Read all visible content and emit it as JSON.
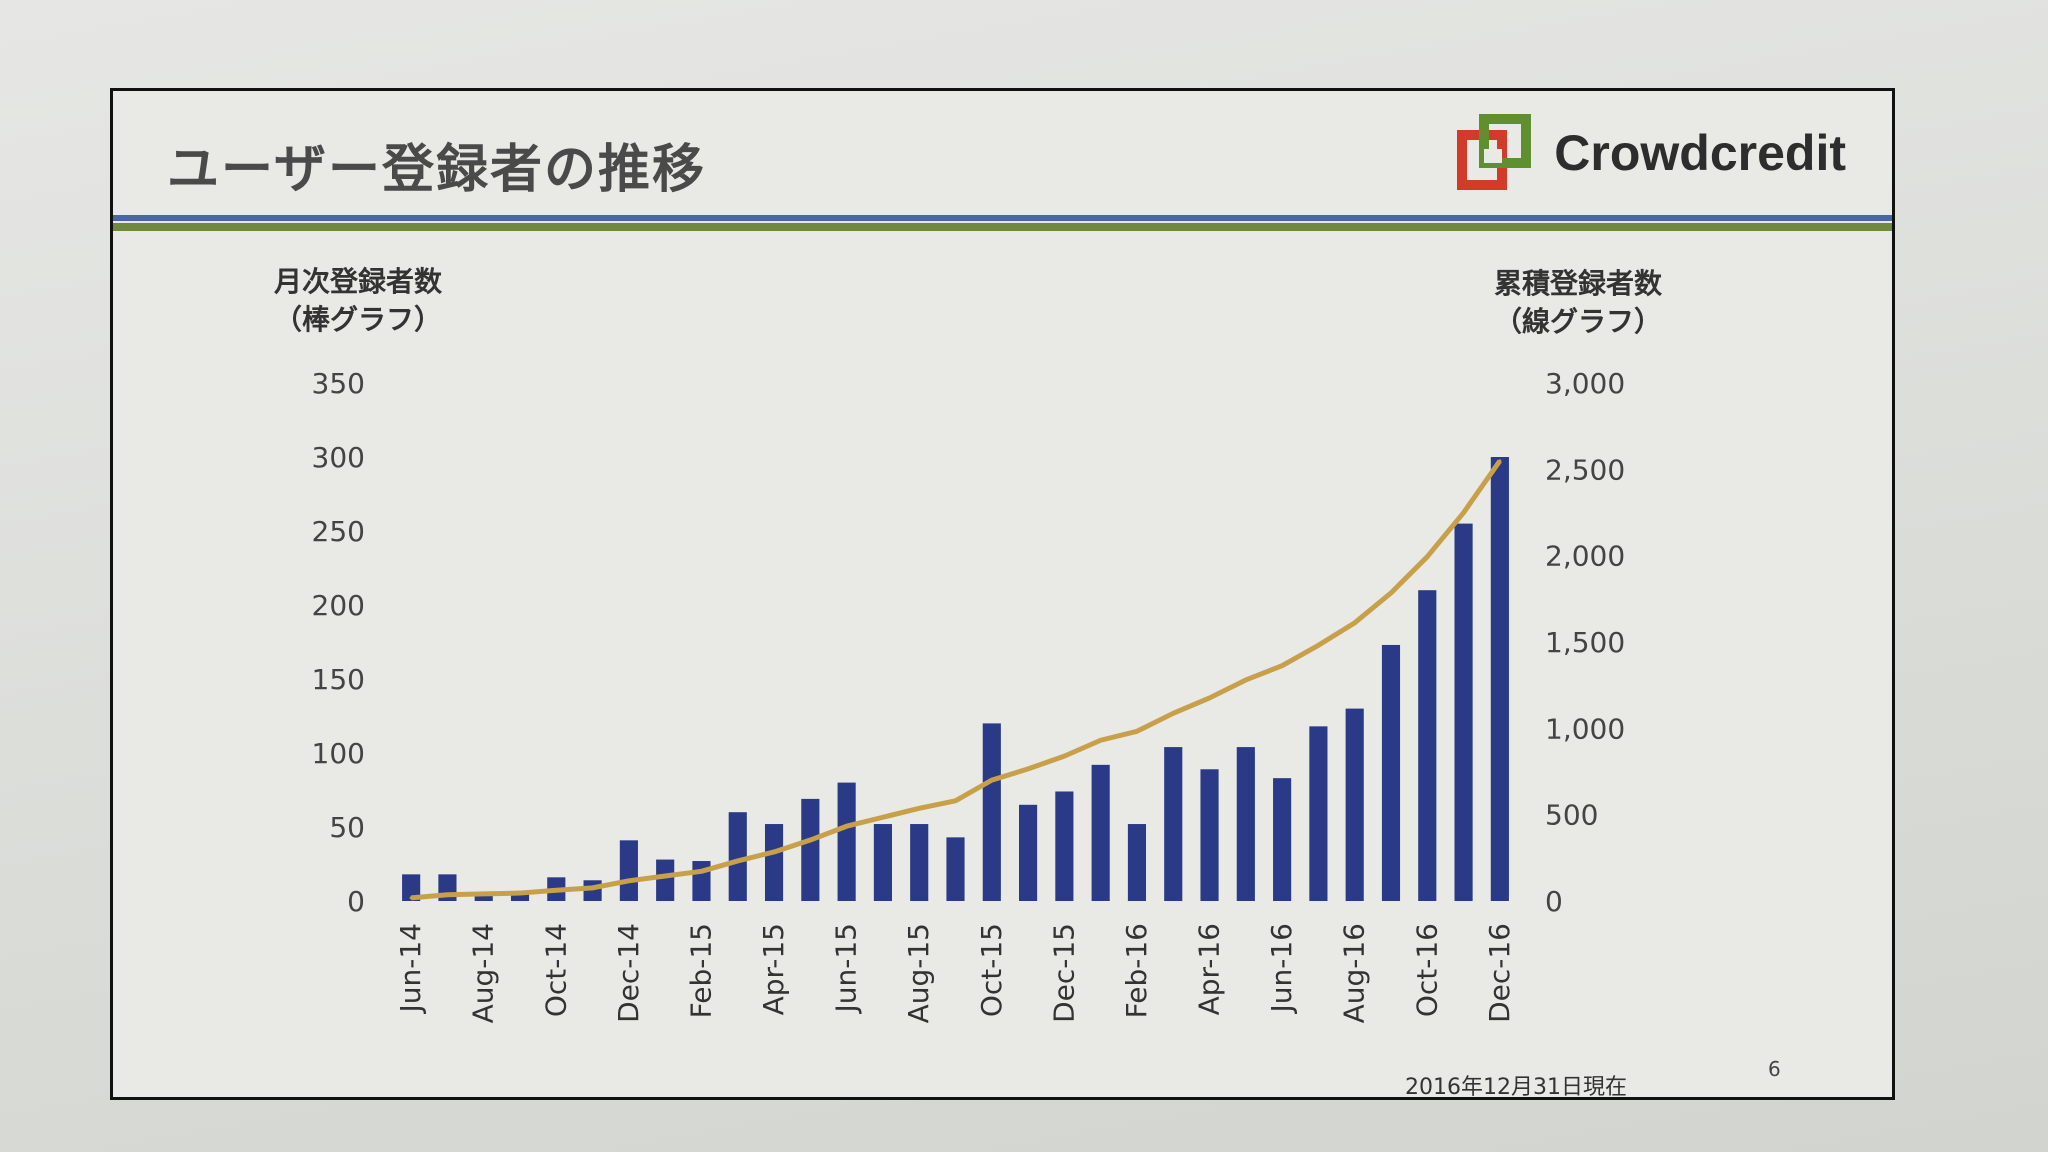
{
  "slide": {
    "title": "ユーザー登録者の推移",
    "logo_text": "Crowdcredit",
    "left_axis_label_1": "月次登録者数",
    "left_axis_label_2": "（棒グラフ）",
    "right_axis_label_1": "累積登録者数",
    "right_axis_label_2": "（線グラフ）",
    "as_of": "2016年12月31日現在",
    "page_number": "6"
  },
  "colors": {
    "bar": "#2b3a86",
    "line": "#c9a04a",
    "title_rule_blue": "#4a66a8",
    "title_rule_green": "#6f8a3e",
    "logo_green": "#5f8f2e",
    "logo_red": "#d23a2a"
  },
  "chart_data": {
    "type": "bar",
    "categories": [
      "Jun-14",
      "Jul-14",
      "Aug-14",
      "Sep-14",
      "Oct-14",
      "Nov-14",
      "Dec-14",
      "Jan-15",
      "Feb-15",
      "Mar-15",
      "Apr-15",
      "May-15",
      "Jun-15",
      "Jul-15",
      "Aug-15",
      "Sep-15",
      "Oct-15",
      "Nov-15",
      "Dec-15",
      "Jan-16",
      "Feb-16",
      "Mar-16",
      "Apr-16",
      "May-16",
      "Jun-16",
      "Jul-16",
      "Aug-16",
      "Sep-16",
      "Oct-16",
      "Nov-16",
      "Dec-16"
    ],
    "x_tick_labels": [
      "Jun-14",
      "Aug-14",
      "Oct-14",
      "Dec-14",
      "Feb-15",
      "Apr-15",
      "Jun-15",
      "Aug-15",
      "Oct-15",
      "Dec-15",
      "Feb-16",
      "Apr-16",
      "Jun-16",
      "Aug-16",
      "Oct-16",
      "Dec-16"
    ],
    "series": [
      {
        "type": "bar",
        "axis": "left",
        "values": [
          18,
          18,
          5,
          5,
          16,
          14,
          41,
          28,
          27,
          60,
          52,
          69,
          80,
          52,
          52,
          43,
          120,
          65,
          74,
          92,
          52,
          104,
          89,
          104,
          83,
          118,
          130,
          173,
          210,
          255,
          300
        ]
      },
      {
        "type": "line",
        "axis": "right",
        "values": [
          18,
          36,
          41,
          46,
          62,
          76,
          117,
          145,
          172,
          232,
          284,
          353,
          433,
          485,
          537,
          580,
          700,
          765,
          839,
          931,
          983,
          1087,
          1176,
          1280,
          1363,
          1481,
          1611,
          1784,
          1994,
          2249,
          2549
        ]
      }
    ],
    "y_left": {
      "min": 0,
      "max": 350,
      "ticks": [
        0,
        50,
        100,
        150,
        200,
        250,
        300,
        350
      ],
      "tick_labels": [
        "0",
        "50",
        "100",
        "150",
        "200",
        "250",
        "300",
        "350"
      ]
    },
    "y_right": {
      "min": 0,
      "max": 3000,
      "ticks": [
        0,
        500,
        1000,
        1500,
        2000,
        2500,
        3000
      ],
      "tick_labels": [
        "0",
        "500",
        "1,000",
        "1,500",
        "2,000",
        "2,500",
        "3,000"
      ]
    },
    "grid": false,
    "legend": "none"
  }
}
